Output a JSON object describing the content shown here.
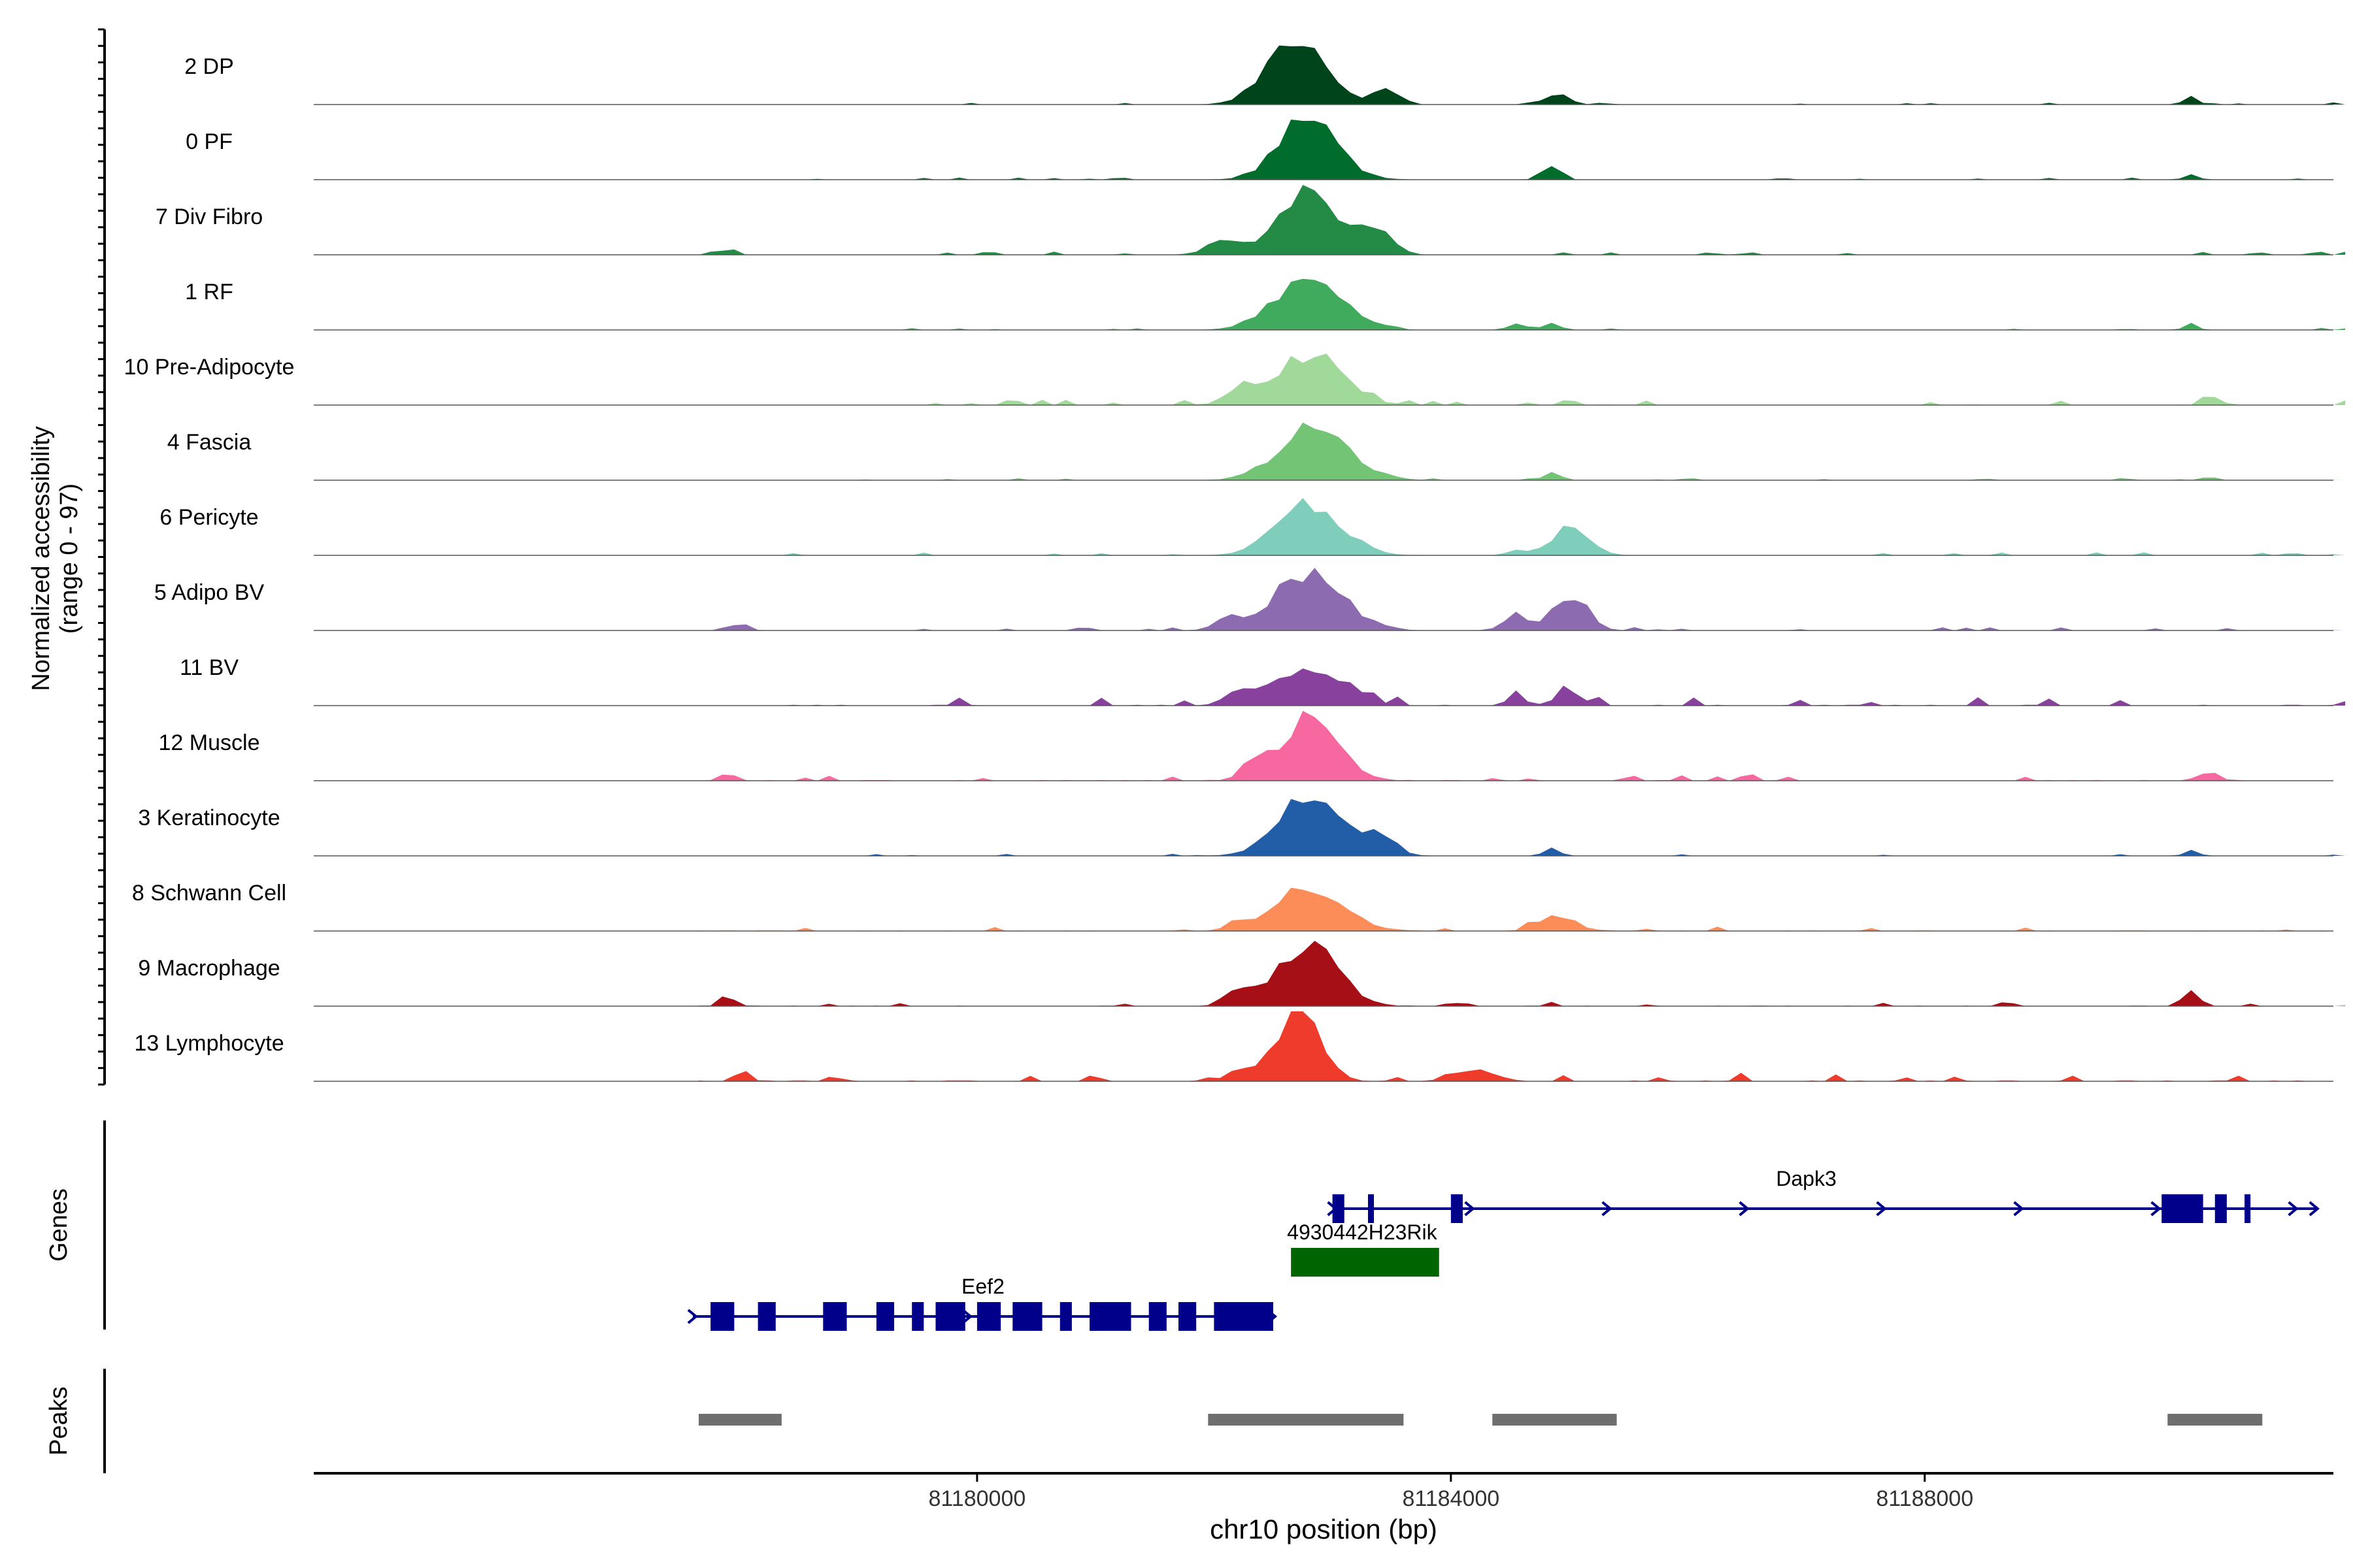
{
  "chart_data": {
    "type": "area",
    "title": "",
    "xlabel": "chr10 position (bp)",
    "ylabel": "Normalized accessibility",
    "ylabel_range": "(range 0 - 97)",
    "ylim": [
      0,
      97
    ],
    "xlim": [
      81174400,
      81191450
    ],
    "x_ticks": [
      81180000,
      81184000,
      81188000
    ],
    "x_tick_labels": [
      "81180000",
      "81184000",
      "81188000"
    ],
    "bin_start": 81177650,
    "bin_end": 81191550,
    "bin_size": 200,
    "tracks": [
      {
        "name": "2 DP",
        "color": "#00441b",
        "peaks": [
          [
            81182700,
            97,
            430
          ],
          [
            81184900,
            14,
            180
          ],
          [
            81183450,
            20,
            200
          ],
          [
            81190250,
            12,
            100
          ]
        ],
        "noise": 2
      },
      {
        "name": "0 PF",
        "color": "#006d2c",
        "peaks": [
          [
            81182800,
            88,
            430
          ],
          [
            81184850,
            22,
            130
          ],
          [
            81190250,
            8,
            100
          ]
        ],
        "noise": 2
      },
      {
        "name": "7 Div Fibro",
        "color": "#238b45",
        "peaks": [
          [
            81182800,
            97,
            400
          ],
          [
            81183350,
            40,
            250
          ],
          [
            81182100,
            20,
            250
          ],
          [
            81177900,
            15,
            70
          ]
        ],
        "noise": 3
      },
      {
        "name": "1 RF",
        "color": "#41ab5d",
        "peaks": [
          [
            81182800,
            70,
            500
          ],
          [
            81184850,
            12,
            120
          ],
          [
            81184550,
            8,
            100
          ],
          [
            81190250,
            8,
            100
          ]
        ],
        "noise": 2
      },
      {
        "name": "10 Pre-Adipocyte",
        "color": "#a1d99b",
        "peaks": [
          [
            81182800,
            70,
            500
          ],
          [
            81182200,
            22,
            170
          ],
          [
            81190400,
            15,
            100
          ]
        ],
        "noise": 5
      },
      {
        "name": "4 Fascia",
        "color": "#74c476",
        "peaks": [
          [
            81182850,
            72,
            520
          ],
          [
            81184850,
            12,
            120
          ],
          [
            81190400,
            6,
            100
          ]
        ],
        "noise": 2
      },
      {
        "name": "6 Pericyte",
        "color": "#7fcdbb",
        "peaks": [
          [
            81182800,
            72,
            480
          ],
          [
            81185000,
            35,
            300
          ],
          [
            81184550,
            8,
            120
          ]
        ],
        "noise": 3
      },
      {
        "name": "5 Adipo BV",
        "color": "#8c6bb1",
        "peaks": [
          [
            81182800,
            80,
            520
          ],
          [
            81185000,
            52,
            250
          ],
          [
            81184550,
            22,
            180
          ],
          [
            81182100,
            15,
            180
          ],
          [
            81178000,
            10,
            120
          ]
        ],
        "noise": 3
      },
      {
        "name": "11 BV",
        "color": "#88419d",
        "peaks": [
          [
            81182800,
            55,
            500
          ],
          [
            81182200,
            20,
            200
          ],
          [
            81185000,
            20,
            200
          ],
          [
            81184550,
            10,
            150
          ]
        ],
        "noise": 8
      },
      {
        "name": "12 Muscle",
        "color": "#f768a1",
        "peaks": [
          [
            81182800,
            85,
            430
          ],
          [
            81182300,
            18,
            150
          ],
          [
            81190400,
            12,
            150
          ]
        ],
        "noise": 6
      },
      {
        "name": "3 Keratinocyte",
        "color": "#225ea8",
        "peaks": [
          [
            81182800,
            85,
            450
          ],
          [
            81183400,
            30,
            230
          ],
          [
            81184850,
            10,
            120
          ],
          [
            81190250,
            8,
            100
          ]
        ],
        "noise": 2
      },
      {
        "name": "8 Schwann Cell",
        "color": "#fc8d59",
        "peaks": [
          [
            81182800,
            60,
            500
          ],
          [
            81184900,
            20,
            280
          ],
          [
            81182200,
            12,
            150
          ]
        ],
        "noise": 4
      },
      {
        "name": "9 Macrophage",
        "color": "#a50f15",
        "peaks": [
          [
            81182800,
            85,
            450
          ],
          [
            81182200,
            20,
            200
          ],
          [
            81190250,
            25,
            120
          ],
          [
            81177900,
            10,
            120
          ]
        ],
        "noise": 4
      },
      {
        "name": "13 Lymphocyte",
        "color": "#ef3b2c",
        "peaks": [
          [
            81182700,
            97,
            330
          ],
          [
            81182200,
            15,
            150
          ],
          [
            81184200,
            15,
            300
          ],
          [
            81178000,
            12,
            100
          ]
        ],
        "noise": 8
      }
    ],
    "genes": [
      {
        "name": "Dapk3",
        "color": "#00008b",
        "strand": "+",
        "start": 81183000,
        "end": 81191300,
        "label_x": 81187000,
        "exons": [
          [
            81183000,
            81183100
          ],
          [
            81183300,
            81183350
          ],
          [
            81184000,
            81184100
          ],
          [
            81190000,
            81190350
          ],
          [
            81190450,
            81190550
          ],
          [
            81190700,
            81190750
          ]
        ]
      },
      {
        "name": "4930442H23Rik",
        "color": "#006400",
        "strand": "+",
        "start": 81182650,
        "end": 81183900,
        "label_x": 81183250,
        "exons": [
          [
            81182650,
            81183900
          ]
        ]
      },
      {
        "name": "Eef2",
        "color": "#00008b",
        "strand": "+",
        "start": 81177600,
        "end": 81182500,
        "label_x": 81180050,
        "exons": [
          [
            81177750,
            81177950
          ],
          [
            81178150,
            81178300
          ],
          [
            81178700,
            81178900
          ],
          [
            81179150,
            81179300
          ],
          [
            81179450,
            81179550
          ],
          [
            81179650,
            81179900
          ],
          [
            81180000,
            81180200
          ],
          [
            81180300,
            81180550
          ],
          [
            81180700,
            81180800
          ],
          [
            81180950,
            81181300
          ],
          [
            81181450,
            81181600
          ],
          [
            81181700,
            81181850
          ],
          [
            81182000,
            81182500
          ]
        ]
      }
    ],
    "peaks": [
      [
        81177650,
        81178350
      ],
      [
        81181950,
        81183600
      ],
      [
        81184350,
        81185400
      ],
      [
        81190050,
        81190850
      ]
    ],
    "peaks_color": "#6e6e6e",
    "panel_labels": {
      "genes": "Genes",
      "peaks": "Peaks"
    }
  }
}
